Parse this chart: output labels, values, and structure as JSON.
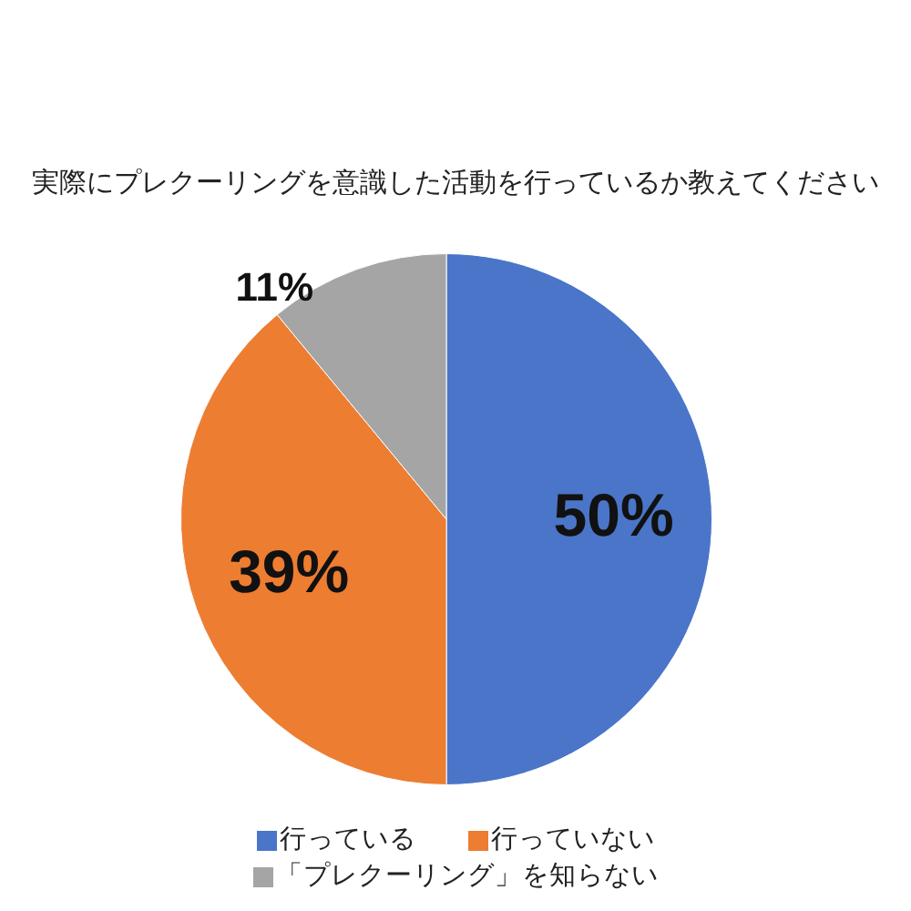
{
  "chart_data": {
    "type": "pie",
    "title": "実際にプレクーリングを意識した活動を行っているか教えてください",
    "categories": [
      "行っている",
      "行っていない",
      "「プレクーリング」を知らない"
    ],
    "values": [
      50,
      39,
      11
    ],
    "colors": [
      "#4a75c9",
      "#ed7d31",
      "#a5a5a5"
    ],
    "value_labels": [
      "50%",
      "39%",
      "11%"
    ],
    "legend": "bottom"
  }
}
